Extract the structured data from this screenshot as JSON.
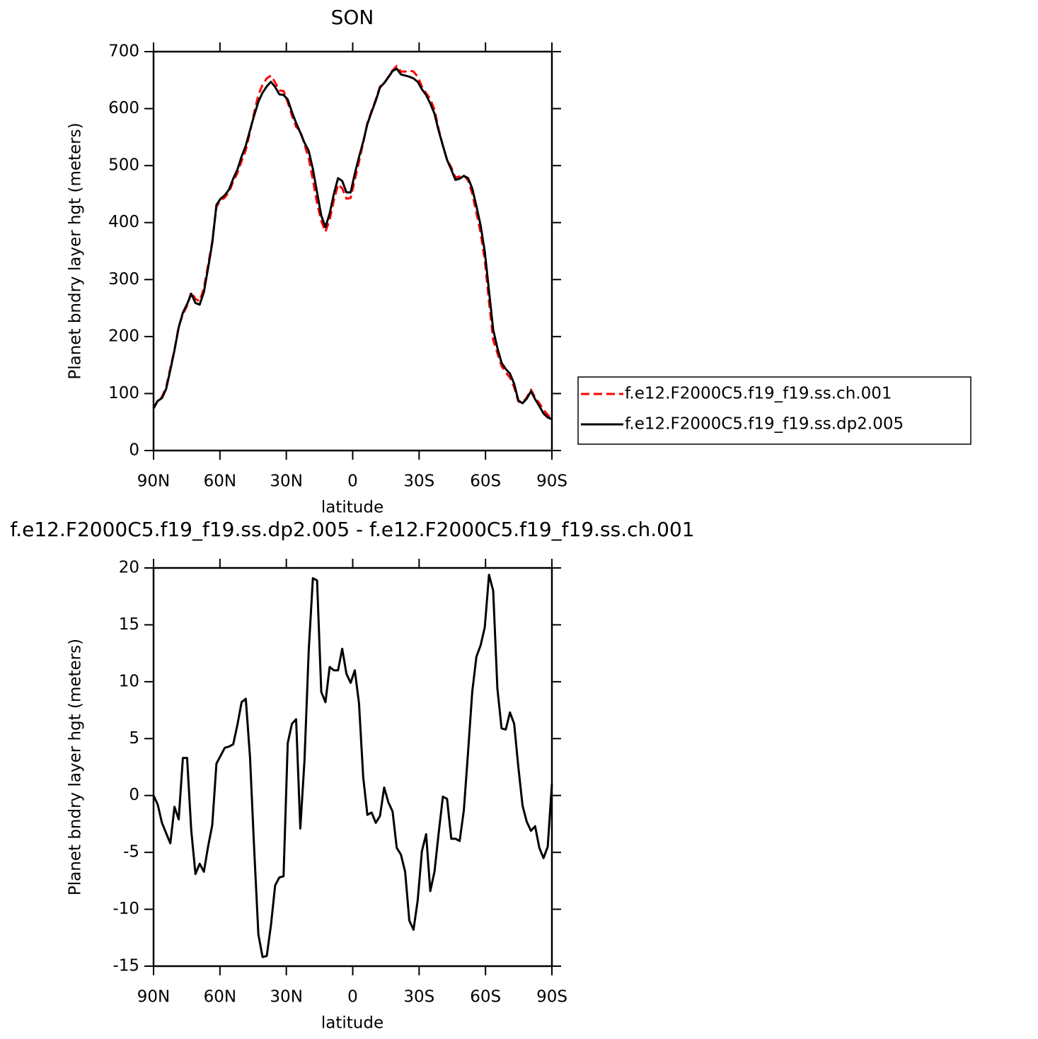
{
  "chart_data": [
    {
      "type": "line",
      "title": "SON",
      "xlabel": "latitude",
      "ylabel": "Planet bndry layer hgt (meters)",
      "x": [
        90,
        88.11,
        86.21,
        84.32,
        82.42,
        80.53,
        78.63,
        76.74,
        74.84,
        72.95,
        71.05,
        69.16,
        67.26,
        65.37,
        63.47,
        61.58,
        59.68,
        57.79,
        55.89,
        54.0,
        52.11,
        50.21,
        48.32,
        46.42,
        44.53,
        42.63,
        40.74,
        38.84,
        36.95,
        35.05,
        33.16,
        31.26,
        29.37,
        27.47,
        25.58,
        23.68,
        21.79,
        19.89,
        18.0,
        16.11,
        14.21,
        12.32,
        10.42,
        8.53,
        6.63,
        4.74,
        2.84,
        0.95,
        -0.95,
        -2.84,
        -4.74,
        -6.63,
        -8.53,
        -10.42,
        -12.32,
        -14.21,
        -16.11,
        -18.0,
        -19.89,
        -21.79,
        -23.68,
        -25.58,
        -27.47,
        -29.37,
        -31.26,
        -33.16,
        -35.05,
        -36.95,
        -38.84,
        -40.74,
        -42.63,
        -44.53,
        -46.42,
        -48.32,
        -50.21,
        -52.11,
        -54.0,
        -55.89,
        -57.79,
        -59.68,
        -61.58,
        -63.47,
        -65.37,
        -67.26,
        -69.16,
        -71.05,
        -72.95,
        -74.84,
        -76.74,
        -78.63,
        -80.53,
        -82.42,
        -84.32,
        -86.21,
        -88.11,
        -90
      ],
      "series": [
        {
          "name": "f.e12.F2000C5.f19_f19.ss.ch.001",
          "color": "#ff0000",
          "dash": "dashed",
          "values": [
            74,
            88,
            94,
            111,
            145,
            177,
            218,
            239,
            254,
            278,
            266,
            262,
            285,
            325,
            367,
            428,
            439,
            444,
            454,
            472,
            487,
            508,
            527,
            559,
            593,
            624,
            642,
            653,
            658,
            646,
            632,
            631,
            611,
            588,
            568,
            561,
            537,
            513,
            475,
            434,
            403,
            384,
            405,
            439,
            467,
            460,
            442,
            443,
            475,
            507,
            540,
            575,
            596,
            616,
            639,
            644,
            656,
            667,
            675,
            665,
            665,
            667,
            665,
            656,
            639,
            627,
            617,
            598,
            564,
            535,
            510,
            497,
            479,
            481,
            483,
            474,
            451,
            417,
            382,
            334,
            261,
            194,
            171,
            148,
            137,
            128,
            111,
            86,
            84,
            93,
            107,
            93,
            83,
            71,
            63,
            54
          ]
        },
        {
          "name": "f.e12.F2000C5.f19_f19.ss.dp2.005",
          "color": "#000000",
          "dash": "solid",
          "values": [
            74,
            87,
            92,
            108,
            141,
            176,
            216,
            242,
            257,
            275,
            259,
            256,
            278,
            320,
            364,
            431,
            442,
            448,
            458,
            477,
            493,
            516,
            535,
            562,
            588,
            612,
            628,
            639,
            647,
            638,
            625,
            624,
            616,
            594,
            575,
            558,
            540,
            526,
            494,
            453,
            412,
            392,
            416,
            450,
            478,
            473,
            453,
            453,
            486,
            515,
            542,
            573,
            594,
            614,
            637,
            645,
            655,
            666,
            670,
            660,
            658,
            656,
            653,
            647,
            634,
            624,
            609,
            591,
            561,
            535,
            510,
            493,
            475,
            477,
            482,
            478,
            460,
            429,
            395,
            349,
            280,
            212,
            180,
            154,
            143,
            135,
            117,
            88,
            83,
            91,
            104,
            90,
            78,
            65,
            58,
            55
          ]
        }
      ],
      "xlim": [
        90,
        -90
      ],
      "xticks": [
        {
          "value": 90,
          "label": "90N"
        },
        {
          "value": 60,
          "label": "60N"
        },
        {
          "value": 30,
          "label": "30N"
        },
        0,
        {
          "value": -30,
          "label": "30S"
        },
        {
          "value": -60,
          "label": "60S"
        },
        {
          "value": -90,
          "label": "90S"
        }
      ],
      "ylim": [
        0,
        700
      ],
      "yticks": [
        0,
        100,
        200,
        300,
        400,
        500,
        600,
        700
      ],
      "grid": false,
      "legend": "right"
    },
    {
      "type": "line",
      "title": "f.e12.F2000C5.f19_f19.ss.dp2.005 - f.e12.F2000C5.f19_f19.ss.ch.001",
      "xlabel": "latitude",
      "ylabel": "Planet bndry layer hgt (meters)",
      "x": [
        90,
        88.11,
        86.21,
        84.32,
        82.42,
        80.53,
        78.63,
        76.74,
        74.84,
        72.95,
        71.05,
        69.16,
        67.26,
        65.37,
        63.47,
        61.58,
        59.68,
        57.79,
        55.89,
        54.0,
        52.11,
        50.21,
        48.32,
        46.42,
        44.53,
        42.63,
        40.74,
        38.84,
        36.95,
        35.05,
        33.16,
        31.26,
        29.37,
        27.47,
        25.58,
        23.68,
        21.79,
        19.89,
        18.0,
        16.11,
        14.21,
        12.32,
        10.42,
        8.53,
        6.63,
        4.74,
        2.84,
        0.95,
        -0.95,
        -2.84,
        -4.74,
        -6.63,
        -8.53,
        -10.42,
        -12.32,
        -14.21,
        -16.11,
        -18.0,
        -19.89,
        -21.79,
        -23.68,
        -25.58,
        -27.47,
        -29.37,
        -31.26,
        -33.16,
        -35.05,
        -36.95,
        -38.84,
        -40.74,
        -42.63,
        -44.53,
        -46.42,
        -48.32,
        -50.21,
        -52.11,
        -54.0,
        -55.89,
        -57.79,
        -59.68,
        -61.58,
        -63.47,
        -65.37,
        -67.26,
        -69.16,
        -71.05,
        -72.95,
        -74.84,
        -76.74,
        -78.63,
        -80.53,
        -82.42,
        -84.32,
        -86.21,
        -88.11,
        -90
      ],
      "series": [
        {
          "color": "#000000",
          "dash": "solid",
          "values": [
            0,
            -0.8,
            -2.4,
            -3.3,
            -4.2,
            -1.0,
            -2.1,
            3.3,
            3.3,
            -3.1,
            -6.9,
            -6.0,
            -6.7,
            -4.5,
            -2.6,
            2.8,
            3.5,
            4.2,
            4.3,
            4.5,
            6.2,
            8.2,
            8.5,
            3.4,
            -4.7,
            -12.2,
            -14.2,
            -14.1,
            -11.4,
            -7.9,
            -7.2,
            -7.1,
            4.6,
            6.3,
            6.7,
            -2.9,
            3.1,
            12.7,
            19.1,
            18.9,
            9.1,
            8.2,
            11.3,
            11.0,
            11.0,
            12.9,
            10.7,
            9.9,
            11.0,
            8.1,
            1.6,
            -1.7,
            -1.5,
            -2.4,
            -1.8,
            0.7,
            -0.6,
            -1.4,
            -4.6,
            -5.2,
            -6.7,
            -11.0,
            -11.8,
            -9.2,
            -4.9,
            -3.4,
            -8.4,
            -6.7,
            -3.3,
            -0.1,
            -0.3,
            -3.8,
            -3.8,
            -4.0,
            -1.3,
            3.8,
            9.1,
            12.2,
            13.2,
            14.8,
            19.4,
            18.0,
            9.4,
            5.9,
            5.8,
            7.3,
            6.3,
            2.5,
            -0.9,
            -2.3,
            -3.1,
            -2.7,
            -4.6,
            -5.5,
            -4.5,
            1.0
          ]
        }
      ],
      "xlim": [
        90,
        -90
      ],
      "xticks": [
        {
          "value": 90,
          "label": "90N"
        },
        {
          "value": 60,
          "label": "60N"
        },
        {
          "value": 30,
          "label": "30N"
        },
        0,
        {
          "value": -30,
          "label": "30S"
        },
        {
          "value": -60,
          "label": "60S"
        },
        {
          "value": -90,
          "label": "90S"
        }
      ],
      "ylim": [
        -15,
        20
      ],
      "yticks": [
        -15,
        -10,
        -5,
        0,
        5,
        10,
        15,
        20
      ],
      "grid": false
    }
  ]
}
